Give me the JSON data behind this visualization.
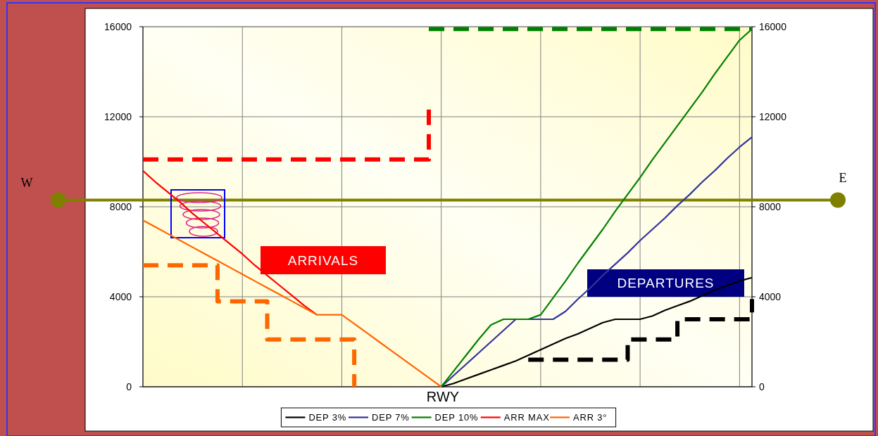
{
  "chart_data": {
    "type": "line",
    "categories": [
      null,
      null,
      null,
      null,
      null,
      null,
      null,
      null,
      null,
      null,
      null,
      null,
      null,
      null,
      null,
      null,
      null,
      null,
      null,
      null,
      null,
      null,
      null,
      null,
      null,
      null,
      null,
      null,
      null,
      null,
      null,
      null,
      null,
      null,
      null,
      null,
      null,
      null,
      null,
      null,
      null,
      null,
      null,
      null,
      null,
      null,
      null,
      null,
      null,
      null
    ],
    "series": [
      {
        "name": "DEP 3%",
        "color": "#000000",
        "values": [
          null,
          null,
          null,
          null,
          null,
          null,
          null,
          null,
          null,
          null,
          null,
          null,
          null,
          null,
          null,
          null,
          null,
          null,
          null,
          null,
          null,
          null,
          null,
          null,
          0,
          150,
          350,
          550,
          750,
          950,
          1150,
          1400,
          1650,
          1900,
          2150,
          2350,
          2600,
          2850,
          3000,
          3000,
          3000,
          3150,
          3400,
          3600,
          3800,
          4050,
          4300,
          4500,
          4700,
          4850
        ]
      },
      {
        "name": "DEP 7%",
        "color": "#333399",
        "values": [
          null,
          null,
          null,
          null,
          null,
          null,
          null,
          null,
          null,
          null,
          null,
          null,
          null,
          null,
          null,
          null,
          null,
          null,
          null,
          null,
          null,
          null,
          null,
          null,
          0,
          500,
          1000,
          1500,
          2000,
          2500,
          3000,
          3000,
          3000,
          3000,
          3350,
          3900,
          4400,
          4950,
          5450,
          5950,
          6500,
          7000,
          7500,
          8050,
          8550,
          9100,
          9600,
          10150,
          10650,
          11100
        ]
      },
      {
        "name": "DEP 10%",
        "color": "#008000",
        "values": [
          null,
          null,
          null,
          null,
          null,
          null,
          null,
          null,
          null,
          null,
          null,
          null,
          null,
          null,
          null,
          null,
          null,
          null,
          null,
          null,
          null,
          null,
          null,
          null,
          0,
          700,
          1400,
          2100,
          2750,
          3000,
          3000,
          3000,
          3200,
          3950,
          4700,
          5500,
          6250,
          7000,
          7800,
          8550,
          9300,
          10100,
          10850,
          11600,
          12350,
          13100,
          13900,
          14650,
          15400,
          15900
        ]
      },
      {
        "name": "ARR MAX",
        "color": "#ff0000",
        "values": [
          9600,
          9100,
          8650,
          8200,
          7700,
          7250,
          6800,
          6350,
          5900,
          5400,
          4950,
          4500,
          4050,
          3600,
          3200,
          null,
          null,
          null,
          null,
          null,
          null,
          null,
          null,
          null,
          null,
          null,
          null,
          null,
          null,
          null,
          null,
          null,
          null,
          null,
          null,
          null,
          null,
          null,
          null,
          null,
          null,
          null,
          null,
          null,
          null,
          null,
          null,
          null,
          null,
          null
        ]
      },
      {
        "name": "ARR 3°",
        "color": "#ff6600",
        "values": [
          7400,
          7100,
          6800,
          6500,
          6200,
          5900,
          5600,
          5300,
          5000,
          4700,
          4400,
          4100,
          3800,
          3500,
          3200,
          3200,
          3200,
          2800,
          2400,
          2000,
          1600,
          1200,
          800,
          400,
          0,
          null,
          null,
          null,
          null,
          null,
          null,
          null,
          null,
          null,
          null,
          null,
          null,
          null,
          null,
          null,
          null,
          null,
          null,
          null,
          null,
          null,
          null,
          null,
          null,
          null
        ]
      },
      {
        "type": "step",
        "line_style": "dashed",
        "color": "#ff0000",
        "values": [
          10100,
          10100,
          10100,
          10100,
          10100,
          10100,
          10100,
          10100,
          10100,
          10100,
          10100,
          10100,
          10100,
          10100,
          10100,
          10100,
          10100,
          10100,
          10100,
          10100,
          10100,
          10100,
          10100,
          12500,
          null,
          null,
          null,
          null,
          null,
          null,
          null,
          null,
          null,
          null,
          null,
          null,
          null,
          null,
          null,
          null,
          null,
          null,
          null,
          null,
          null,
          null,
          null,
          null,
          null,
          null
        ]
      },
      {
        "type": "step",
        "line_style": "dashed",
        "color": "#008000",
        "values": [
          null,
          null,
          null,
          null,
          null,
          null,
          null,
          null,
          null,
          null,
          null,
          null,
          null,
          null,
          null,
          null,
          null,
          null,
          null,
          null,
          null,
          null,
          null,
          15900,
          15900,
          15900,
          15900,
          15900,
          15900,
          15900,
          15900,
          15900,
          15900,
          15900,
          15900,
          15900,
          15900,
          15900,
          15900,
          15900,
          15900,
          15900,
          15900,
          15900,
          15900,
          15900,
          15900,
          15900,
          15900,
          15900
        ]
      },
      {
        "type": "step",
        "line_style": "dashed",
        "color": "#ff6600",
        "values": [
          5400,
          5400,
          5400,
          5400,
          5400,
          5400,
          3800,
          3800,
          3800,
          3800,
          2100,
          2100,
          2100,
          2100,
          2100,
          2100,
          2100,
          0,
          null,
          null,
          null,
          null,
          null,
          null,
          null,
          null,
          null,
          null,
          null,
          null,
          null,
          null,
          null,
          null,
          null,
          null,
          null,
          null,
          null,
          null,
          null,
          null,
          null,
          null,
          null,
          null,
          null,
          null,
          null,
          null
        ]
      },
      {
        "type": "step",
        "line_style": "dashed",
        "color": "#000000",
        "values": [
          null,
          null,
          null,
          null,
          null,
          null,
          null,
          null,
          null,
          null,
          null,
          null,
          null,
          null,
          null,
          null,
          null,
          null,
          null,
          null,
          null,
          null,
          null,
          null,
          null,
          null,
          null,
          null,
          null,
          null,
          null,
          1200,
          1200,
          1200,
          1200,
          1200,
          1200,
          1200,
          1200,
          2100,
          2100,
          2100,
          2100,
          3000,
          3000,
          3000,
          3000,
          3000,
          3000,
          3900
        ]
      }
    ],
    "ylim": [
      0,
      16000
    ],
    "yticks": [
      0,
      4000,
      8000,
      12000,
      16000
    ],
    "y2lim": [
      0,
      16000
    ],
    "y2ticks": [
      0,
      4000,
      8000,
      12000,
      16000
    ],
    "ref_lines": [
      {
        "axis": "y",
        "value": 8300,
        "color": "#808000"
      }
    ],
    "annotations": [
      "ARRIVALS",
      "DEPARTURES",
      "RWY",
      "W",
      "E"
    ],
    "grid": true,
    "legend": "bottom"
  }
}
